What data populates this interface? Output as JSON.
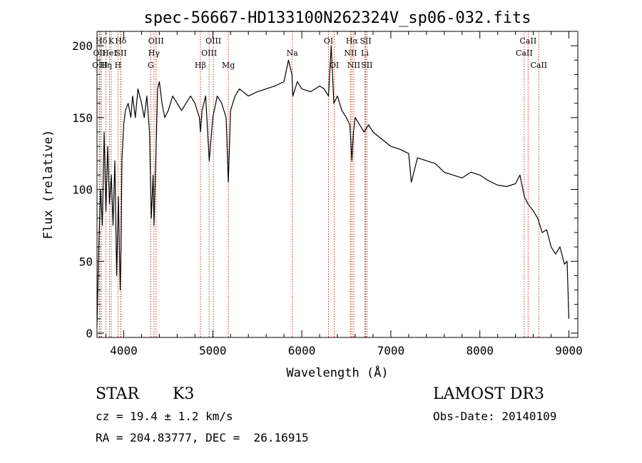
{
  "chart_data": {
    "type": "line",
    "title": "spec-56667-HD133100N262324V_sp06-032.fits",
    "xlabel": "Wavelength (Å)",
    "ylabel": "Flux (relative)",
    "xlim": [
      3700,
      9100
    ],
    "ylim": [
      -3,
      210
    ],
    "xticks": [
      4000,
      5000,
      6000,
      7000,
      8000,
      9000
    ],
    "yticks": [
      0,
      50,
      100,
      150,
      200
    ],
    "series": [
      {
        "name": "spectrum",
        "x": [
          3700,
          3720,
          3740,
          3760,
          3780,
          3800,
          3820,
          3840,
          3860,
          3880,
          3900,
          3920,
          3940,
          3960,
          3970,
          3980,
          4000,
          4020,
          4050,
          4080,
          4100,
          4130,
          4160,
          4200,
          4230,
          4260,
          4290,
          4310,
          4330,
          4340,
          4360,
          4380,
          4400,
          4430,
          4460,
          4500,
          4550,
          4600,
          4650,
          4700,
          4750,
          4800,
          4850,
          4862,
          4880,
          4920,
          4960,
          5000,
          5050,
          5100,
          5150,
          5175,
          5200,
          5250,
          5300,
          5400,
          5500,
          5600,
          5700,
          5800,
          5850,
          5890,
          5900,
          5950,
          6000,
          6100,
          6200,
          6250,
          6300,
          6330,
          6360,
          6400,
          6450,
          6500,
          6540,
          6563,
          6580,
          6600,
          6650,
          6700,
          6750,
          6800,
          6900,
          7000,
          7100,
          7200,
          7230,
          7300,
          7400,
          7500,
          7600,
          7700,
          7800,
          7900,
          8000,
          8100,
          8200,
          8300,
          8400,
          8450,
          8500,
          8540,
          8600,
          8650,
          8700,
          8750,
          8800,
          8850,
          8900,
          8950,
          8980,
          9000
        ],
        "y": [
          5,
          60,
          100,
          75,
          140,
          85,
          130,
          90,
          110,
          75,
          120,
          40,
          95,
          30,
          60,
          120,
          145,
          155,
          160,
          150,
          165,
          150,
          170,
          160,
          150,
          165,
          140,
          80,
          110,
          75,
          120,
          170,
          175,
          160,
          150,
          155,
          165,
          160,
          155,
          160,
          165,
          160,
          150,
          140,
          155,
          165,
          120,
          150,
          165,
          160,
          150,
          105,
          155,
          165,
          170,
          165,
          168,
          170,
          172,
          175,
          190,
          180,
          165,
          175,
          170,
          168,
          172,
          170,
          165,
          200,
          160,
          165,
          155,
          150,
          145,
          120,
          140,
          150,
          145,
          140,
          145,
          140,
          135,
          130,
          128,
          125,
          105,
          122,
          120,
          118,
          112,
          110,
          108,
          112,
          110,
          106,
          103,
          102,
          104,
          110,
          95,
          90,
          85,
          80,
          70,
          72,
          60,
          55,
          60,
          48,
          50,
          10
        ]
      }
    ],
    "lines": [
      {
        "label": "Hδ",
        "x": 3750,
        "row": 0
      },
      {
        "label": "OII",
        "x": 3727,
        "row": 1
      },
      {
        "label": "OIII",
        "x": 3733,
        "row": 2
      },
      {
        "label": "K",
        "x": 3860,
        "row": 0
      },
      {
        "label": "HeI",
        "x": 3840,
        "row": 1
      },
      {
        "label": "Hη",
        "x": 3800,
        "row": 2
      },
      {
        "label": "Hδ",
        "x": 3967,
        "row": 0
      },
      {
        "label": "SII",
        "x": 3969,
        "row": 1
      },
      {
        "label": "H",
        "x": 3935,
        "row": 2
      },
      {
        "label": "OIII",
        "x": 4363,
        "row": 0
      },
      {
        "label": "Hγ",
        "x": 4340,
        "row": 1
      },
      {
        "label": "G",
        "x": 4304,
        "row": 2
      },
      {
        "label": "Hβ",
        "x": 4861,
        "row": 2
      },
      {
        "label": "OIII",
        "x": 5007,
        "row": 0
      },
      {
        "label": "OIII",
        "x": 4959,
        "row": 1
      },
      {
        "label": "Mg",
        "x": 5175,
        "row": 2
      },
      {
        "label": "Na",
        "x": 5893,
        "row": 1
      },
      {
        "label": "OI",
        "x": 6300,
        "row": 0
      },
      {
        "label": "OI",
        "x": 6364,
        "row": 2
      },
      {
        "label": "Hα",
        "x": 6563,
        "row": 0
      },
      {
        "label": "NII",
        "x": 6548,
        "row": 1
      },
      {
        "label": "NII",
        "x": 6584,
        "row": 2
      },
      {
        "label": "SII",
        "x": 6717,
        "row": 0
      },
      {
        "label": "Li",
        "x": 6708,
        "row": 1
      },
      {
        "label": "SII",
        "x": 6731,
        "row": 2
      },
      {
        "label": "CaII",
        "x": 8542,
        "row": 0
      },
      {
        "label": "CaII",
        "x": 8498,
        "row": 1
      },
      {
        "label": "CaII",
        "x": 8662,
        "row": 2
      }
    ]
  },
  "info": {
    "object_class": "STAR",
    "subclass": "K3",
    "redshift_text": "cz = 19.4 ± 1.2 km/s",
    "coords_text": "RA = 204.83777, DEC =  26.16915",
    "survey": "LAMOST DR3",
    "obs_date_text": "Obs-Date: 20140109"
  }
}
